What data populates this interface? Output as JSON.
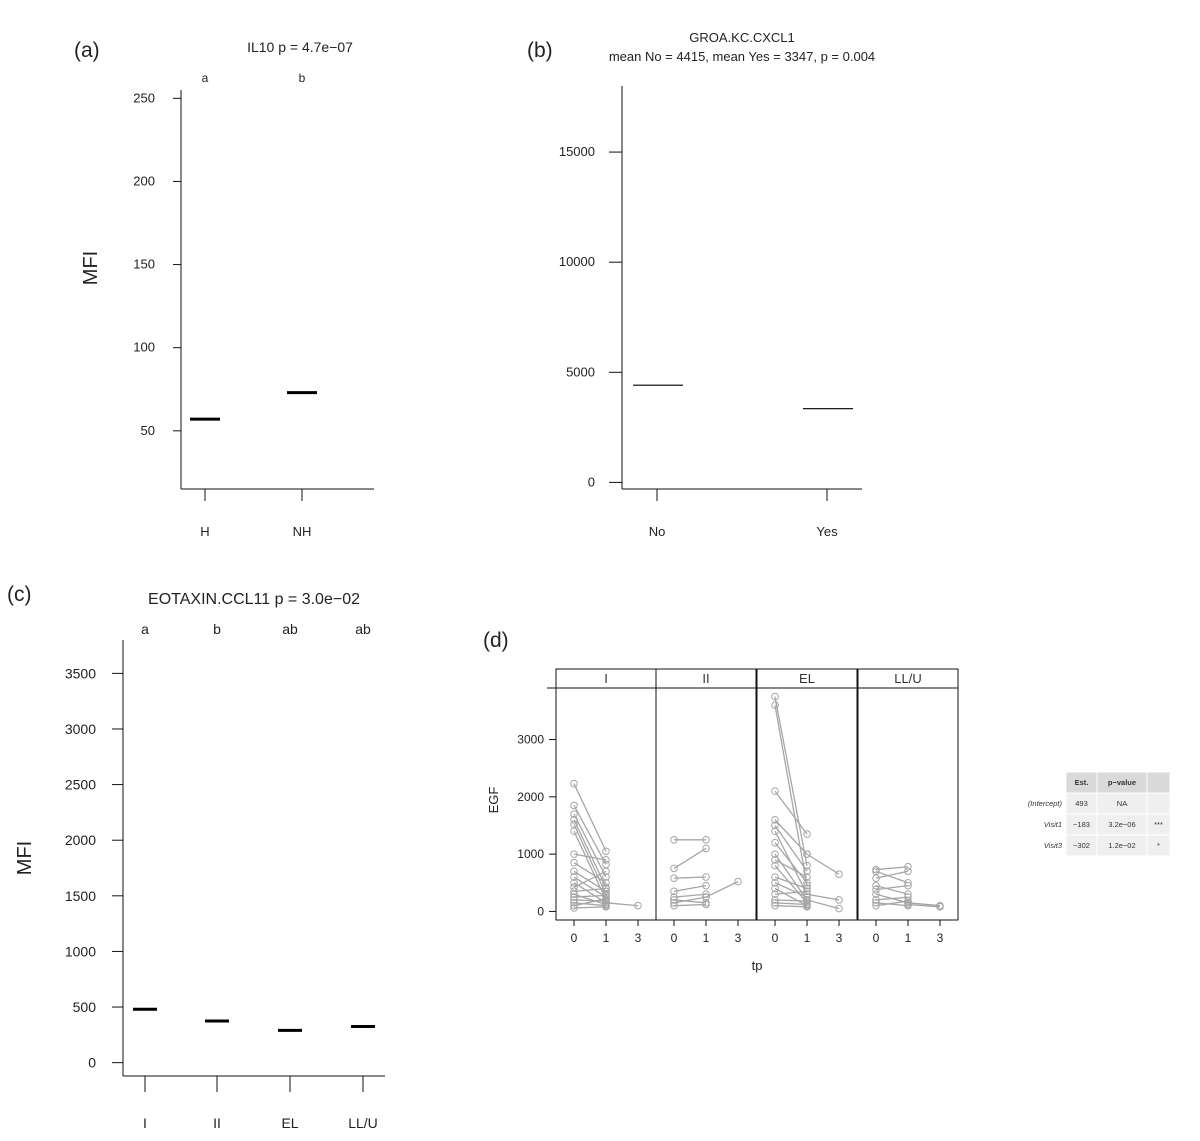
{
  "panels": {
    "a": {
      "label": "(a)"
    },
    "b": {
      "label": "(b)"
    },
    "c": {
      "label": "(c)"
    },
    "d": {
      "label": "(d)"
    }
  },
  "chart_data": [
    {
      "id": "a",
      "type": "bar",
      "title": "IL10 p = 4.7e−07",
      "ylabel": "MFI",
      "xlabel": "",
      "categories": [
        "H",
        "NH"
      ],
      "values": [
        57,
        73
      ],
      "group_letters": [
        "a",
        "b"
      ],
      "ylim": [
        15,
        255
      ],
      "yticks": [
        50,
        100,
        150,
        200,
        250
      ]
    },
    {
      "id": "b",
      "type": "bar",
      "title": "GROA.KC.CXCL1",
      "subtitle": "mean No = 4415, mean Yes = 3347, p = 0.004",
      "ylabel": "",
      "xlabel": "",
      "categories": [
        "No",
        "Yes"
      ],
      "values": [
        4415,
        3347
      ],
      "ylim": [
        -300,
        18000
      ],
      "yticks": [
        0,
        5000,
        10000,
        15000
      ]
    },
    {
      "id": "c",
      "type": "bar",
      "title": "EOTAXIN.CCL11 p = 3.0e−02",
      "ylabel": "MFI",
      "xlabel": "",
      "categories": [
        "I",
        "II",
        "EL",
        "LL/U"
      ],
      "values": [
        480,
        375,
        290,
        325
      ],
      "group_letters": [
        "a",
        "b",
        "ab",
        "ab"
      ],
      "ylim": [
        -120,
        3800
      ],
      "yticks": [
        0,
        500,
        1000,
        1500,
        2000,
        2500,
        3000,
        3500
      ]
    },
    {
      "id": "d",
      "type": "line",
      "title": "",
      "xlabel": "tp",
      "ylabel": "EGF",
      "facets": [
        "I",
        "II",
        "EL",
        "LL/U"
      ],
      "x_ticks": [
        "0",
        "1",
        "3"
      ],
      "yticks": [
        0,
        1000,
        2000,
        3000
      ],
      "ylim": [
        -150,
        3900
      ],
      "series_color": "#a6a6a6",
      "series": [
        {
          "facet": "I",
          "x": [
            0,
            1
          ],
          "y": [
            2230,
            1050
          ]
        },
        {
          "facet": "I",
          "x": [
            0,
            1
          ],
          "y": [
            1850,
            820
          ]
        },
        {
          "facet": "I",
          "x": [
            0,
            1
          ],
          "y": [
            1700,
            600
          ]
        },
        {
          "facet": "I",
          "x": [
            0,
            1
          ],
          "y": [
            1600,
            420
          ]
        },
        {
          "facet": "I",
          "x": [
            0,
            1
          ],
          "y": [
            1520,
            300
          ]
        },
        {
          "facet": "I",
          "x": [
            0,
            1
          ],
          "y": [
            1400,
            200
          ]
        },
        {
          "facet": "I",
          "x": [
            0,
            1
          ],
          "y": [
            1000,
            900
          ]
        },
        {
          "facet": "I",
          "x": [
            0,
            1
          ],
          "y": [
            850,
            500
          ]
        },
        {
          "facet": "I",
          "x": [
            0,
            1
          ],
          "y": [
            700,
            350
          ]
        },
        {
          "facet": "I",
          "x": [
            0,
            1
          ],
          "y": [
            600,
            250
          ]
        },
        {
          "facet": "I",
          "x": [
            0,
            1
          ],
          "y": [
            500,
            150
          ]
        },
        {
          "facet": "I",
          "x": [
            0,
            1
          ],
          "y": [
            420,
            700
          ]
        },
        {
          "facet": "I",
          "x": [
            0,
            1
          ],
          "y": [
            350,
            400
          ]
        },
        {
          "facet": "I",
          "x": [
            0,
            1
          ],
          "y": [
            300,
            120
          ]
        },
        {
          "facet": "I",
          "x": [
            0,
            1
          ],
          "y": [
            250,
            280
          ]
        },
        {
          "facet": "I",
          "x": [
            0,
            1
          ],
          "y": [
            200,
            180
          ]
        },
        {
          "facet": "I",
          "x": [
            0,
            1
          ],
          "y": [
            150,
            100
          ]
        },
        {
          "facet": "I",
          "x": [
            0,
            1
          ],
          "y": [
            100,
            220
          ]
        },
        {
          "facet": "I",
          "x": [
            0,
            1
          ],
          "y": [
            60,
            80
          ]
        },
        {
          "facet": "I",
          "x": [
            1,
            3
          ],
          "y": [
            150,
            100
          ]
        },
        {
          "facet": "II",
          "x": [
            0,
            1
          ],
          "y": [
            1250,
            1250
          ]
        },
        {
          "facet": "II",
          "x": [
            0,
            1
          ],
          "y": [
            750,
            1100
          ]
        },
        {
          "facet": "II",
          "x": [
            0,
            1
          ],
          "y": [
            580,
            600
          ]
        },
        {
          "facet": "II",
          "x": [
            0,
            1
          ],
          "y": [
            350,
            450
          ]
        },
        {
          "facet": "II",
          "x": [
            0,
            1
          ],
          "y": [
            250,
            300
          ]
        },
        {
          "facet": "II",
          "x": [
            0,
            1
          ],
          "y": [
            200,
            150
          ]
        },
        {
          "facet": "II",
          "x": [
            0,
            1
          ],
          "y": [
            150,
            250
          ]
        },
        {
          "facet": "II",
          "x": [
            0,
            1
          ],
          "y": [
            100,
            120
          ]
        },
        {
          "facet": "II",
          "x": [
            1,
            3
          ],
          "y": [
            250,
            520
          ]
        },
        {
          "facet": "EL",
          "x": [
            0,
            1
          ],
          "y": [
            3750,
            800
          ]
        },
        {
          "facet": "EL",
          "x": [
            0,
            1
          ],
          "y": [
            3600,
            450
          ]
        },
        {
          "facet": "EL",
          "x": [
            0,
            1
          ],
          "y": [
            2100,
            1350
          ]
        },
        {
          "facet": "EL",
          "x": [
            0,
            1
          ],
          "y": [
            1600,
            1000
          ]
        },
        {
          "facet": "EL",
          "x": [
            0,
            1
          ],
          "y": [
            1500,
            700
          ]
        },
        {
          "facet": "EL",
          "x": [
            0,
            1
          ],
          "y": [
            1400,
            300
          ]
        },
        {
          "facet": "EL",
          "x": [
            0,
            1
          ],
          "y": [
            1200,
            500
          ]
        },
        {
          "facet": "EL",
          "x": [
            0,
            1
          ],
          "y": [
            1000,
            200
          ]
        },
        {
          "facet": "EL",
          "x": [
            0,
            1
          ],
          "y": [
            900,
            600
          ]
        },
        {
          "facet": "EL",
          "x": [
            0,
            1
          ],
          "y": [
            800,
            150
          ]
        },
        {
          "facet": "EL",
          "x": [
            0,
            1
          ],
          "y": [
            600,
            400
          ]
        },
        {
          "facet": "EL",
          "x": [
            0,
            1
          ],
          "y": [
            500,
            250
          ]
        },
        {
          "facet": "EL",
          "x": [
            0,
            1
          ],
          "y": [
            400,
            100
          ]
        },
        {
          "facet": "EL",
          "x": [
            0,
            1
          ],
          "y": [
            300,
            350
          ]
        },
        {
          "facet": "EL",
          "x": [
            0,
            1
          ],
          "y": [
            200,
            180
          ]
        },
        {
          "facet": "EL",
          "x": [
            0,
            1
          ],
          "y": [
            150,
            120
          ]
        },
        {
          "facet": "EL",
          "x": [
            0,
            1
          ],
          "y": [
            100,
            80
          ]
        },
        {
          "facet": "EL",
          "x": [
            1,
            3
          ],
          "y": [
            1000,
            650
          ]
        },
        {
          "facet": "EL",
          "x": [
            1,
            3
          ],
          "y": [
            300,
            200
          ]
        },
        {
          "facet": "EL",
          "x": [
            1,
            3
          ],
          "y": [
            200,
            50
          ]
        },
        {
          "facet": "LL/U",
          "x": [
            0,
            1
          ],
          "y": [
            730,
            780
          ]
        },
        {
          "facet": "LL/U",
          "x": [
            0,
            1
          ],
          "y": [
            700,
            500
          ]
        },
        {
          "facet": "LL/U",
          "x": [
            0,
            1
          ],
          "y": [
            580,
            700
          ]
        },
        {
          "facet": "LL/U",
          "x": [
            0,
            1
          ],
          "y": [
            450,
            300
          ]
        },
        {
          "facet": "LL/U",
          "x": [
            0,
            1
          ],
          "y": [
            380,
            450
          ]
        },
        {
          "facet": "LL/U",
          "x": [
            0,
            1
          ],
          "y": [
            300,
            150
          ]
        },
        {
          "facet": "LL/U",
          "x": [
            0,
            1
          ],
          "y": [
            200,
            250
          ]
        },
        {
          "facet": "LL/U",
          "x": [
            0,
            1
          ],
          "y": [
            150,
            100
          ]
        },
        {
          "facet": "LL/U",
          "x": [
            0,
            1
          ],
          "y": [
            100,
            180
          ]
        },
        {
          "facet": "LL/U",
          "x": [
            1,
            3
          ],
          "y": [
            150,
            100
          ]
        },
        {
          "facet": "LL/U",
          "x": [
            1,
            3
          ],
          "y": [
            120,
            80
          ]
        }
      ],
      "table": {
        "headers": [
          "",
          "Est.",
          "p−value",
          ""
        ],
        "rows": [
          [
            "(Intercept)",
            "493",
            "NA",
            ""
          ],
          [
            "Visit1",
            "−183",
            "3.2e−06",
            "***"
          ],
          [
            "Visit3",
            "−302",
            "1.2e−02",
            "*"
          ]
        ]
      }
    }
  ]
}
